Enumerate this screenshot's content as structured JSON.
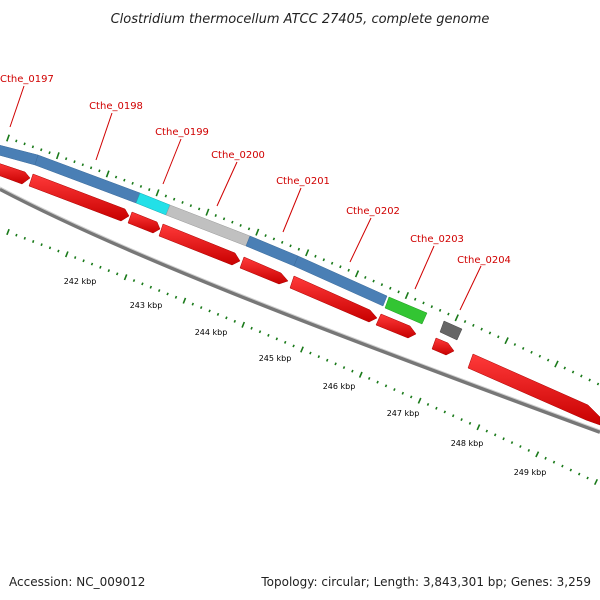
{
  "title": "Clostridium thermocellum ATCC 27405, complete genome",
  "footer": {
    "accession": "Accession: NC_009012",
    "summary": "Topology: circular; Length: 3,843,301 bp; Genes: 3,259"
  },
  "gene_labels": [
    "Cthe_0197",
    "Cthe_0198",
    "Cthe_0199",
    "Cthe_0200",
    "Cthe_0201",
    "Cthe_0202",
    "Cthe_0203",
    "Cthe_0204"
  ],
  "kbp_labels": [
    "242 kbp",
    "243 kbp",
    "244 kbp",
    "245 kbp",
    "246 kbp",
    "247 kbp",
    "248 kbp",
    "249 kbp"
  ],
  "colors": {
    "blue_gene": "#4a7fb5",
    "cyan_gene": "#22e0e8",
    "grey_gene": "#c0c0c0",
    "green_gene": "#33c533",
    "darkgrey_gene": "#666666",
    "cds_red": "#ee0000",
    "backbone": "#777777",
    "tick_green": "#1a7a1a",
    "label_red": "#d00000"
  }
}
